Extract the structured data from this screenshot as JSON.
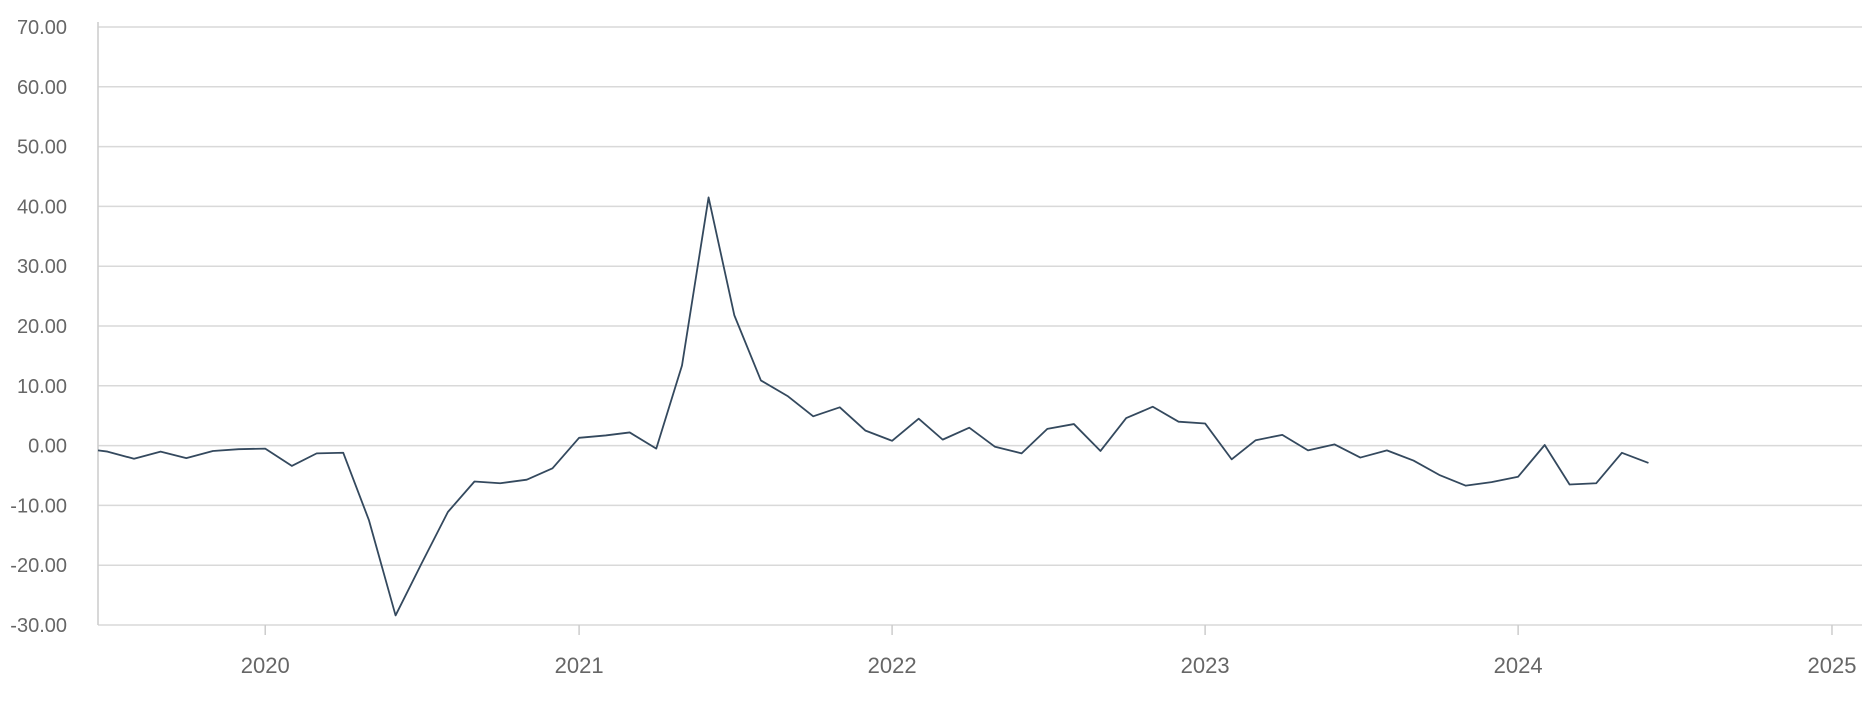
{
  "chart_data": {
    "type": "line",
    "title": "",
    "xlabel": "",
    "ylabel": "",
    "ylim": [
      -30,
      70
    ],
    "xlim": [
      "2019-06-20",
      "2025-02-05"
    ],
    "y_ticks": [
      "-30.00",
      "-20.00",
      "-10.00",
      "0.00",
      "10.00",
      "20.00",
      "30.00",
      "40.00",
      "50.00",
      "60.00",
      "70.00"
    ],
    "x_ticks": [
      "2020",
      "2021",
      "2022",
      "2023",
      "2024",
      "2025"
    ],
    "grid": true,
    "legend": "none",
    "colors": {
      "line": "#34495e",
      "grid": "#d9d9d9",
      "text": "#666666"
    },
    "series": [
      {
        "x": [
          "2019-06-20",
          "2019-07-01",
          "2019-08-01",
          "2019-09-01",
          "2019-10-01",
          "2019-11-01",
          "2019-12-01",
          "2020-01-01",
          "2020-02-01",
          "2020-03-01",
          "2020-04-01",
          "2020-05-01",
          "2020-06-01",
          "2020-07-01",
          "2020-08-01",
          "2020-09-01",
          "2020-10-01",
          "2020-11-01",
          "2020-12-01",
          "2021-01-01",
          "2021-02-01",
          "2021-03-01",
          "2021-04-01",
          "2021-05-01",
          "2021-06-01",
          "2021-07-01",
          "2021-08-01",
          "2021-09-01",
          "2021-10-01",
          "2021-11-01",
          "2021-12-01",
          "2022-01-01",
          "2022-02-01",
          "2022-03-01",
          "2022-04-01",
          "2022-05-01",
          "2022-06-01",
          "2022-07-01",
          "2022-08-01",
          "2022-09-01",
          "2022-10-01",
          "2022-11-01",
          "2022-12-01",
          "2023-01-01",
          "2023-02-01",
          "2023-03-01",
          "2023-04-01",
          "2023-05-01",
          "2023-06-01",
          "2023-07-01",
          "2023-08-01",
          "2023-09-01",
          "2023-10-01",
          "2023-11-01",
          "2023-12-01",
          "2024-01-01",
          "2024-02-01",
          "2024-03-01",
          "2024-04-01",
          "2024-05-01",
          "2024-06-01"
        ],
        "values": [
          -0.8,
          -1.0,
          -2.2,
          -1.0,
          -2.1,
          -0.9,
          -0.6,
          -0.5,
          -3.4,
          -1.3,
          -1.2,
          -12.5,
          -28.4,
          -19.8,
          -11.1,
          -6.0,
          -6.3,
          -5.7,
          -3.8,
          1.3,
          1.7,
          2.2,
          -0.5,
          13.4,
          41.5,
          21.8,
          10.9,
          8.3,
          4.9,
          6.4,
          2.5,
          0.8,
          4.5,
          1.0,
          3.0,
          -0.2,
          -1.3,
          2.8,
          3.6,
          -0.9,
          4.6,
          6.5,
          4.0,
          3.7,
          -2.3,
          0.9,
          1.8,
          -0.8,
          0.2,
          -2.0,
          -0.8,
          -2.5,
          -4.9,
          -6.7,
          -6.1,
          -5.2,
          0.1,
          -6.5,
          -6.3,
          -1.2,
          -2.9
        ]
      }
    ]
  }
}
